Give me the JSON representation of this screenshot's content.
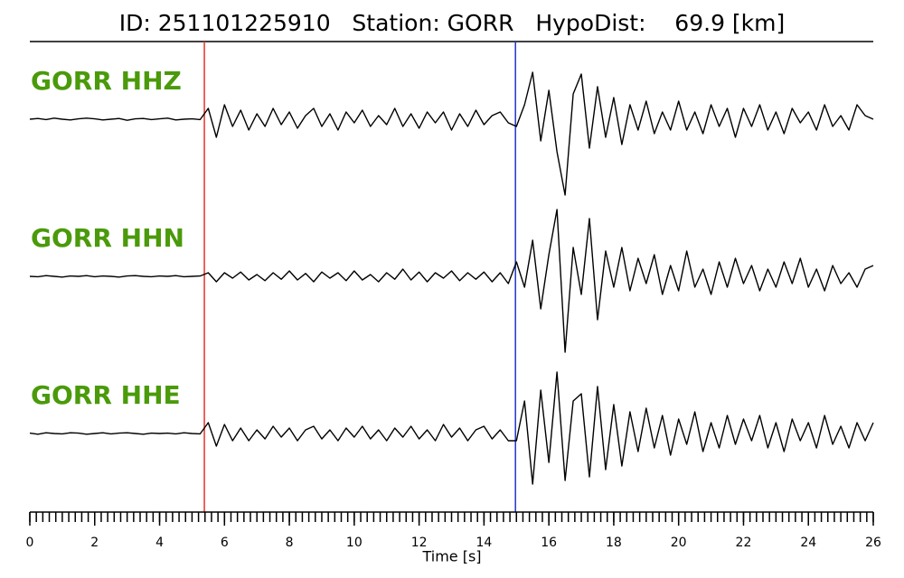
{
  "chart_data": {
    "type": "seismogram",
    "title": "ID: 251101225910   Station: GORR   HypoDist:    69.9 [km]",
    "x_label": "Time [s]",
    "xlim": [
      0,
      26
    ],
    "xticks": [
      0,
      2,
      4,
      6,
      8,
      10,
      12,
      14,
      16,
      18,
      20,
      22,
      24,
      26
    ],
    "xminor_step": 0.2,
    "label_color": "#4a9a0a",
    "markers": [
      {
        "time": 5.38,
        "color": "#e8302a"
      },
      {
        "time": 14.97,
        "color": "#2433c4"
      }
    ],
    "x": [
      0,
      0.25,
      0.5,
      0.75,
      1,
      1.25,
      1.5,
      1.75,
      2,
      2.25,
      2.5,
      2.75,
      3,
      3.25,
      3.5,
      3.75,
      4,
      4.25,
      4.5,
      4.75,
      5,
      5.25,
      5.5,
      5.75,
      6,
      6.25,
      6.5,
      6.75,
      7,
      7.25,
      7.5,
      7.75,
      8,
      8.25,
      8.5,
      8.75,
      9,
      9.25,
      9.5,
      9.75,
      10,
      10.25,
      10.5,
      10.75,
      11,
      11.25,
      11.5,
      11.75,
      12,
      12.25,
      12.5,
      12.75,
      13,
      13.25,
      13.5,
      13.75,
      14,
      14.25,
      14.5,
      14.75,
      15,
      15.25,
      15.5,
      15.75,
      16,
      16.25,
      16.5,
      16.75,
      17,
      17.25,
      17.5,
      17.75,
      18,
      18.25,
      18.5,
      18.75,
      19,
      19.25,
      19.5,
      19.75,
      20,
      20.25,
      20.5,
      20.75,
      21,
      21.25,
      21.5,
      21.75,
      22,
      22.25,
      22.5,
      22.75,
      23,
      23.25,
      23.5,
      23.75,
      24,
      24.25,
      24.5,
      24.75,
      25,
      25.25,
      25.5,
      25.75,
      26
    ],
    "series": [
      {
        "name": "GORR HHZ",
        "color": "#000000",
        "values": [
          0,
          0.02,
          -0.01,
          0.03,
          0,
          -0.02,
          0.01,
          0.03,
          0.01,
          -0.02,
          0,
          0.02,
          -0.03,
          0.01,
          0.02,
          -0.01,
          0.01,
          0.03,
          -0.02,
          0,
          0.01,
          -0.01,
          0.3,
          -0.5,
          0.4,
          -0.2,
          0.25,
          -0.3,
          0.15,
          -0.2,
          0.3,
          -0.15,
          0.2,
          -0.25,
          0.1,
          0.3,
          -0.2,
          0.15,
          -0.3,
          0.2,
          -0.1,
          0.25,
          -0.2,
          0.1,
          -0.15,
          0.3,
          -0.2,
          0.15,
          -0.25,
          0.2,
          -0.1,
          0.2,
          -0.3,
          0.15,
          -0.2,
          0.25,
          -0.15,
          0.1,
          0.2,
          -0.1,
          -0.2,
          0.4,
          1.3,
          -0.6,
          0.8,
          -0.9,
          -2.1,
          0.7,
          1.25,
          -0.8,
          0.9,
          -0.5,
          0.6,
          -0.7,
          0.4,
          -0.3,
          0.5,
          -0.4,
          0.2,
          -0.3,
          0.5,
          -0.3,
          0.2,
          -0.4,
          0.4,
          -0.2,
          0.3,
          -0.5,
          0.3,
          -0.2,
          0.4,
          -0.3,
          0.2,
          -0.4,
          0.3,
          -0.1,
          0.2,
          -0.3,
          0.4,
          -0.2,
          0.1,
          -0.3,
          0.4,
          0.1,
          0
        ]
      },
      {
        "name": "GORR HHN",
        "color": "#000000",
        "values": [
          0,
          -0.01,
          0.02,
          0,
          -0.02,
          0.01,
          0,
          0.02,
          -0.01,
          0.01,
          0,
          -0.02,
          0.01,
          0.02,
          0,
          -0.01,
          0.01,
          0,
          0.02,
          -0.01,
          0,
          0.01,
          0.1,
          -0.15,
          0.1,
          -0.05,
          0.12,
          -0.1,
          0.05,
          -0.12,
          0.1,
          -0.08,
          0.15,
          -0.1,
          0.08,
          -0.15,
          0.12,
          -0.05,
          0.1,
          -0.12,
          0.15,
          -0.1,
          0.05,
          -0.15,
          0.1,
          -0.08,
          0.2,
          -0.1,
          0.12,
          -0.15,
          0.1,
          -0.05,
          0.15,
          -0.12,
          0.1,
          -0.08,
          0.12,
          -0.15,
          0.1,
          -0.2,
          0.4,
          -0.3,
          1.0,
          -0.9,
          0.6,
          1.85,
          -2.1,
          0.8,
          -0.5,
          1.6,
          -1.2,
          0.7,
          -0.3,
          0.8,
          -0.4,
          0.5,
          -0.2,
          0.6,
          -0.5,
          0.3,
          -0.4,
          0.7,
          -0.3,
          0.2,
          -0.5,
          0.4,
          -0.3,
          0.5,
          -0.2,
          0.3,
          -0.4,
          0.2,
          -0.3,
          0.4,
          -0.2,
          0.5,
          -0.3,
          0.2,
          -0.4,
          0.3,
          -0.2,
          0.1,
          -0.3,
          0.2,
          0.3
        ]
      },
      {
        "name": "GORR HHE",
        "color": "#000000",
        "values": [
          0.01,
          -0.02,
          0.02,
          0,
          -0.01,
          0.02,
          0.01,
          -0.02,
          0,
          0.02,
          -0.01,
          0.01,
          0.02,
          0,
          -0.02,
          0.01,
          0,
          0.01,
          -0.01,
          0.02,
          0,
          -0.01,
          0.3,
          -0.35,
          0.25,
          -0.2,
          0.15,
          -0.2,
          0.1,
          -0.15,
          0.2,
          -0.1,
          0.15,
          -0.2,
          0.1,
          0.2,
          -0.15,
          0.1,
          -0.2,
          0.15,
          -0.1,
          0.2,
          -0.15,
          0.1,
          -0.2,
          0.15,
          -0.1,
          0.2,
          -0.15,
          0.1,
          -0.2,
          0.25,
          -0.1,
          0.15,
          -0.2,
          0.1,
          0.2,
          -0.15,
          0.1,
          -0.2,
          -0.2,
          0.9,
          -1.4,
          1.2,
          -0.8,
          1.7,
          -1.3,
          0.9,
          1.1,
          -1.2,
          1.3,
          -1.0,
          0.8,
          -0.9,
          0.6,
          -0.5,
          0.7,
          -0.4,
          0.5,
          -0.6,
          0.4,
          -0.3,
          0.6,
          -0.5,
          0.3,
          -0.4,
          0.5,
          -0.3,
          0.4,
          -0.2,
          0.5,
          -0.4,
          0.3,
          -0.5,
          0.4,
          -0.2,
          0.3,
          -0.4,
          0.5,
          -0.3,
          0.2,
          -0.4,
          0.3,
          -0.2,
          0.3
        ]
      }
    ]
  }
}
